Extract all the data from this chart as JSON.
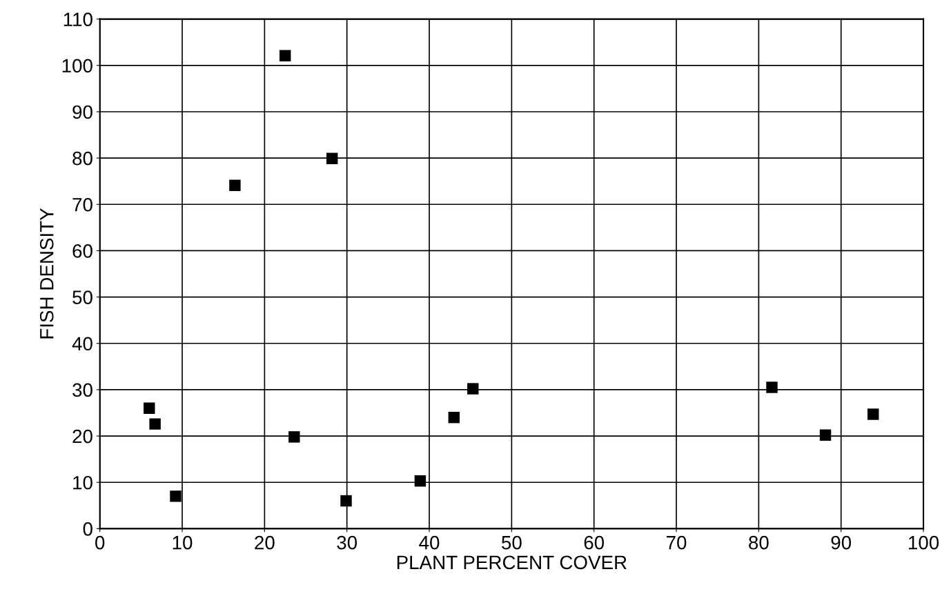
{
  "chart_data": {
    "type": "scatter",
    "xlabel": "PLANT PERCENT COVER",
    "ylabel": "FISH DENSITY",
    "x": [
      6,
      6.7,
      9.2,
      16.4,
      22.5,
      23.6,
      28.2,
      29.9,
      38.9,
      43,
      45.3,
      81.6,
      88.1,
      93.9
    ],
    "values": [
      26,
      22.6,
      7,
      74.1,
      102.1,
      19.8,
      79.9,
      6,
      10.3,
      24,
      30.2,
      30.5,
      20.2,
      24.7
    ],
    "color": "#000000",
    "marker": "square",
    "grid": true,
    "xlim": [
      0,
      100
    ],
    "xticks": [
      0,
      10,
      20,
      30,
      40,
      50,
      60,
      70,
      80,
      90,
      100
    ],
    "ylim": [
      0,
      110
    ],
    "yticks": [
      0,
      10,
      20,
      30,
      40,
      50,
      60,
      70,
      80,
      90,
      100,
      110
    ]
  }
}
